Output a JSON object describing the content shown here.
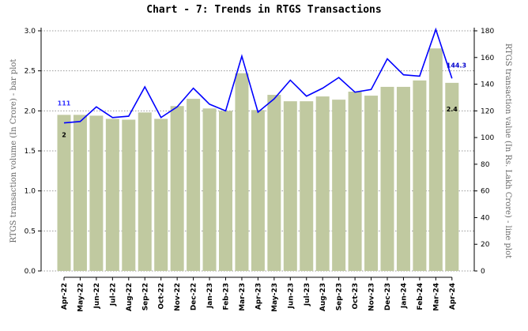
{
  "chart_data": {
    "type": "bar+line",
    "title": "Chart - 7: Trends in RTGS Transactions",
    "ylabel_left": "RTGS transaction volume (In Crore) - bar plot",
    "ylabel_right": "RTGS transaction value (In Rs. Lakh Crore) - line plot",
    "ylim_left": [
      0,
      3.0
    ],
    "ylim_right": [
      0,
      180
    ],
    "yticks_left": [
      "0.0",
      "0.5",
      "1.0",
      "1.5",
      "2.0",
      "2.5",
      "3.0"
    ],
    "yticks_right": [
      "0",
      "20",
      "40",
      "60",
      "80",
      "100",
      "120",
      "140",
      "160",
      "180"
    ],
    "grid": "horizontal dotted",
    "categories": [
      "Apr-22",
      "May-22",
      "Jun-22",
      "Jul-22",
      "Aug-22",
      "Sep-22",
      "Oct-22",
      "Nov-22",
      "Dec-22",
      "Jan-23",
      "Feb-23",
      "Mar-23",
      "Apr-23",
      "May-23",
      "Jun-23",
      "Jul-23",
      "Aug-23",
      "Sep-23",
      "Oct-23",
      "Nov-23",
      "Dec-23",
      "Jan-24",
      "Feb-24",
      "Mar-24",
      "Apr-24"
    ],
    "series": [
      {
        "type": "bar",
        "axis": "left",
        "color": "#c0c9a0",
        "values": [
          1.95,
          1.95,
          1.94,
          1.9,
          1.89,
          1.98,
          1.9,
          2.06,
          2.15,
          2.03,
          2.0,
          2.47,
          2.01,
          2.2,
          2.12,
          2.12,
          2.18,
          2.14,
          2.24,
          2.19,
          2.3,
          2.3,
          2.38,
          2.78,
          2.35
        ]
      },
      {
        "type": "line",
        "axis": "right",
        "color": "#0000ff",
        "values": [
          111,
          112,
          123,
          115,
          116,
          138,
          115,
          123,
          137,
          125,
          120,
          161,
          119,
          129,
          143,
          131,
          137,
          145,
          134,
          136,
          159,
          147,
          146,
          181,
          144.3
        ]
      }
    ],
    "annotations": [
      {
        "text": "111",
        "series": "line",
        "index": 0
      },
      {
        "text": "2",
        "series": "bar",
        "index": 0
      },
      {
        "text": "144.3",
        "series": "line",
        "index": 24
      },
      {
        "text": "2.4",
        "series": "bar",
        "index": 24
      }
    ]
  }
}
